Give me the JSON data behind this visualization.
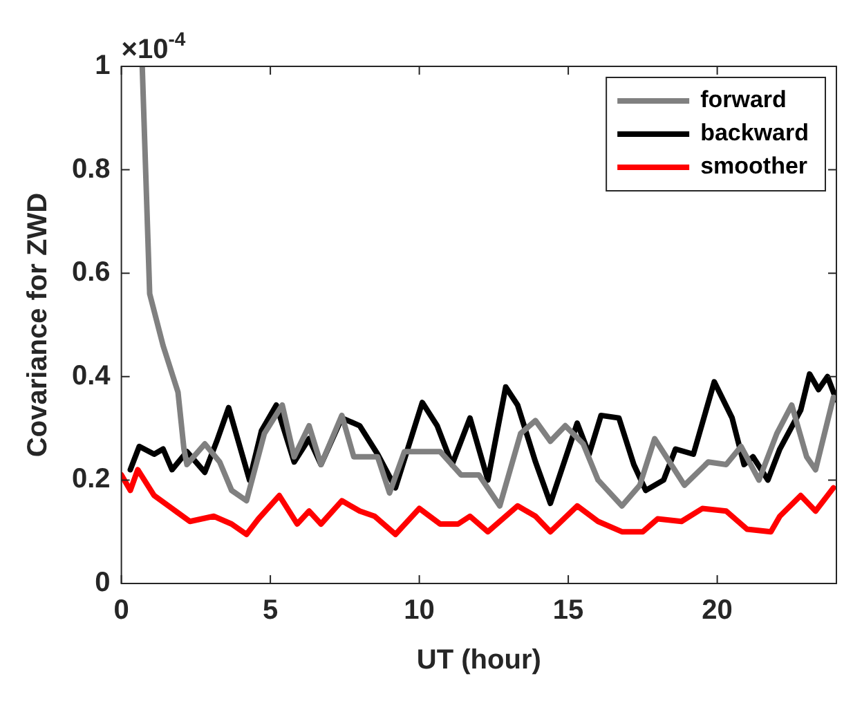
{
  "chart_data": {
    "type": "line",
    "xlabel": "UT (hour)",
    "ylabel": "Covariance for ZWD",
    "annotations": [
      "×10$^{-4}$"
    ],
    "xlim": [
      0,
      24
    ],
    "xticks": [
      0,
      5,
      10,
      15,
      20
    ],
    "ylim": [
      0,
      1
    ],
    "yticks": [
      0,
      0.2,
      0.4,
      0.6,
      0.8,
      1
    ],
    "grid": false,
    "legend": "top right",
    "marker": "none",
    "line_style": "solid",
    "series": [
      {
        "name": "forward",
        "color": "#808080",
        "x": [
          0.7,
          0.95,
          1.4,
          1.9,
          2.1,
          2.2,
          2.8,
          3.3,
          3.7,
          4.2,
          4.8,
          5.4,
          5.8,
          6.3,
          6.7,
          7.4,
          7.8,
          8.6,
          9.0,
          9.5,
          10.1,
          10.7,
          11.4,
          12.0,
          12.7,
          13.4,
          13.9,
          14.4,
          14.9,
          15.5,
          16.0,
          16.8,
          17.4,
          17.9,
          18.4,
          18.9,
          19.7,
          20.3,
          20.8,
          21.4,
          22.0,
          22.5,
          23.0,
          23.3,
          23.9
        ],
        "values": [
          1.0,
          0.56,
          0.46,
          0.37,
          0.26,
          0.23,
          0.27,
          0.235,
          0.18,
          0.16,
          0.29,
          0.345,
          0.245,
          0.305,
          0.23,
          0.325,
          0.245,
          0.245,
          0.175,
          0.255,
          0.255,
          0.255,
          0.21,
          0.21,
          0.15,
          0.29,
          0.315,
          0.275,
          0.305,
          0.27,
          0.2,
          0.15,
          0.19,
          0.28,
          0.235,
          0.19,
          0.235,
          0.23,
          0.265,
          0.2,
          0.29,
          0.345,
          0.245,
          0.22,
          0.36
        ]
      },
      {
        "name": "backward",
        "color": "#000000",
        "x": [
          0.3,
          0.6,
          1.1,
          1.4,
          1.7,
          2.2,
          2.8,
          3.2,
          3.6,
          4.3,
          4.7,
          5.2,
          5.8,
          6.3,
          6.7,
          7.4,
          8.0,
          8.6,
          9.2,
          10.1,
          10.6,
          11.1,
          11.7,
          12.3,
          12.9,
          13.3,
          13.9,
          14.4,
          15.3,
          15.7,
          16.1,
          16.7,
          17.2,
          17.6,
          18.2,
          18.6,
          19.2,
          19.9,
          20.5,
          20.9,
          21.2,
          21.7,
          22.1,
          22.8,
          23.1,
          23.4,
          23.7,
          24.0
        ],
        "values": [
          0.22,
          0.265,
          0.25,
          0.26,
          0.22,
          0.255,
          0.215,
          0.275,
          0.34,
          0.2,
          0.295,
          0.345,
          0.235,
          0.28,
          0.23,
          0.32,
          0.305,
          0.25,
          0.185,
          0.35,
          0.305,
          0.23,
          0.32,
          0.2,
          0.38,
          0.345,
          0.235,
          0.155,
          0.31,
          0.25,
          0.325,
          0.32,
          0.23,
          0.18,
          0.2,
          0.26,
          0.25,
          0.39,
          0.32,
          0.23,
          0.245,
          0.2,
          0.26,
          0.335,
          0.405,
          0.375,
          0.4,
          0.355
        ]
      },
      {
        "name": "smoother",
        "color": "#ff0000",
        "x": [
          0,
          0.3,
          0.55,
          1.1,
          1.7,
          2.3,
          3.1,
          3.7,
          4.2,
          4.6,
          5.3,
          5.9,
          6.3,
          6.7,
          7.4,
          8.0,
          8.5,
          9.2,
          10.0,
          10.7,
          11.3,
          11.7,
          12.3,
          13.3,
          13.9,
          14.4,
          15.3,
          16.0,
          16.8,
          17.5,
          18.0,
          18.8,
          19.5,
          20.3,
          21.0,
          21.8,
          22.1,
          22.8,
          23.3,
          23.9
        ],
        "values": [
          0.21,
          0.18,
          0.22,
          0.17,
          0.145,
          0.12,
          0.13,
          0.115,
          0.095,
          0.125,
          0.17,
          0.115,
          0.14,
          0.115,
          0.16,
          0.14,
          0.13,
          0.095,
          0.145,
          0.115,
          0.115,
          0.13,
          0.1,
          0.15,
          0.13,
          0.1,
          0.15,
          0.12,
          0.1,
          0.1,
          0.125,
          0.12,
          0.145,
          0.14,
          0.105,
          0.1,
          0.13,
          0.17,
          0.14,
          0.185
        ]
      }
    ]
  }
}
